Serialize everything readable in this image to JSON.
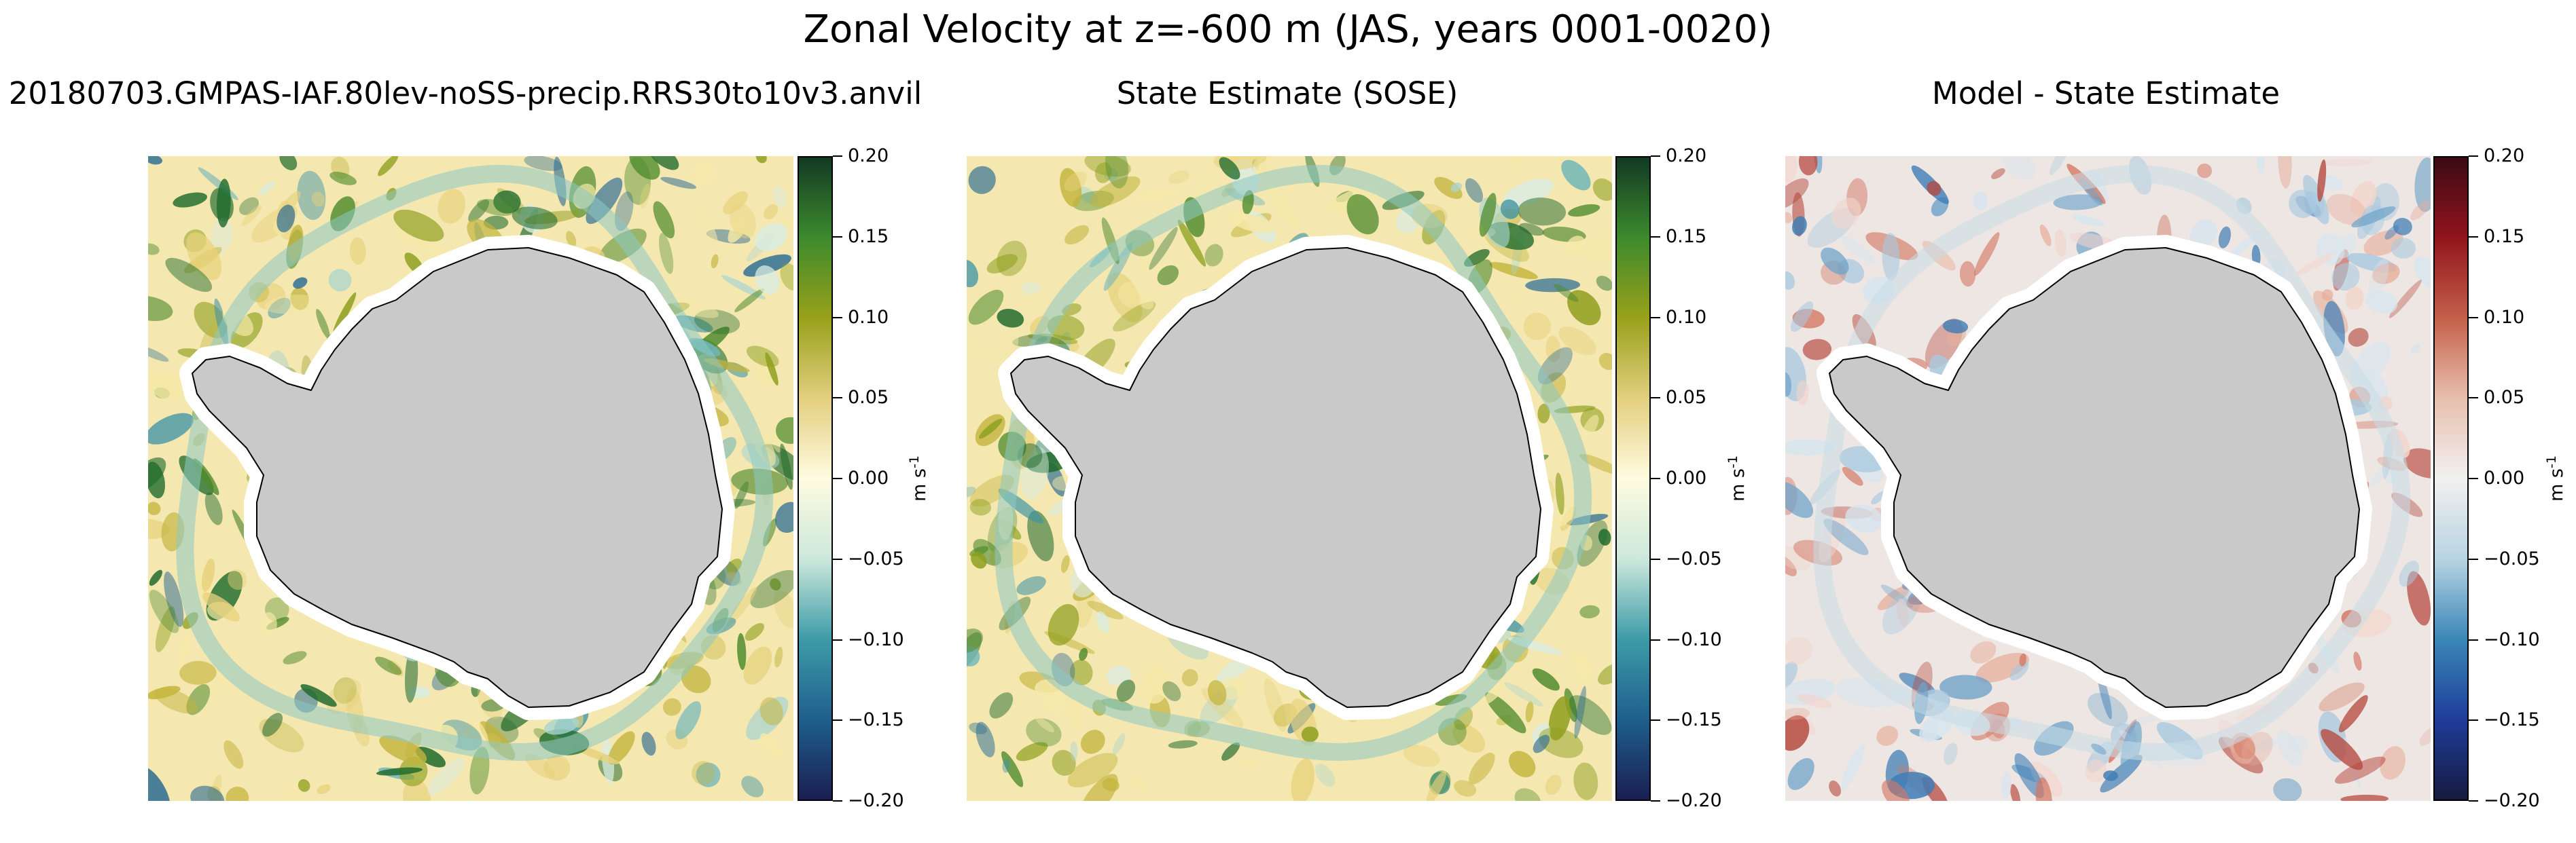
{
  "title": "Zonal Velocity at z=-600 m (JAS, years 0001-0020)",
  "chart_data": [
    {
      "type": "heatmap",
      "title": "20180703.GMPAS-IAF.80lev-noSS-precip.RRS30to10v3.anvil",
      "projection": "south-polar stereographic",
      "land_color": "#c9c9c9",
      "colormap": "ocean-speed diverging (navy-teal-cream-olive-dark green)",
      "colorbar": {
        "label": "m s",
        "label_exponent": "-1",
        "range": [
          -0.2,
          0.2
        ],
        "ticks": [
          -0.2,
          -0.15,
          -0.1,
          -0.05,
          0.0,
          0.05,
          0.1,
          0.15,
          0.2
        ],
        "tick_labels": [
          "−0.20",
          "−0.15",
          "−0.10",
          "−0.05",
          "0.00",
          "0.05",
          "0.10",
          "0.15",
          "0.20"
        ],
        "stops": [
          "#1a1e52",
          "#1f5f8c",
          "#3d9ba8",
          "#cde8dc",
          "#fefbe0",
          "#e3cf7f",
          "#98a11b",
          "#3c8a2c",
          "#123a24"
        ]
      }
    },
    {
      "type": "heatmap",
      "title": "State Estimate (SOSE)",
      "projection": "south-polar stereographic",
      "land_color": "#c9c9c9",
      "colormap": "ocean-speed diverging (navy-teal-cream-olive-dark green)",
      "colorbar": {
        "label": "m s",
        "label_exponent": "-1",
        "range": [
          -0.2,
          0.2
        ],
        "ticks": [
          -0.2,
          -0.15,
          -0.1,
          -0.05,
          0.0,
          0.05,
          0.1,
          0.15,
          0.2
        ],
        "tick_labels": [
          "−0.20",
          "−0.15",
          "−0.10",
          "−0.05",
          "0.00",
          "0.05",
          "0.10",
          "0.15",
          "0.20"
        ],
        "stops": [
          "#1a1e52",
          "#1f5f8c",
          "#3d9ba8",
          "#cde8dc",
          "#fefbe0",
          "#e3cf7f",
          "#98a11b",
          "#3c8a2c",
          "#123a24"
        ]
      }
    },
    {
      "type": "heatmap",
      "title": "Model - State Estimate",
      "projection": "south-polar stereographic",
      "land_color": "#c9c9c9",
      "colormap": "balance (blue-white-red)",
      "colorbar": {
        "label": "m s",
        "label_exponent": "-1",
        "range": [
          -0.2,
          0.2
        ],
        "ticks": [
          -0.2,
          -0.15,
          -0.1,
          -0.05,
          0.0,
          0.05,
          0.1,
          0.15,
          0.2
        ],
        "tick_labels": [
          "−0.20",
          "−0.15",
          "−0.10",
          "−0.05",
          "0.00",
          "0.05",
          "0.10",
          "0.15",
          "0.20"
        ],
        "stops": [
          "#161a40",
          "#1f3d9a",
          "#3a87b7",
          "#b9d4e3",
          "#f2f0ef",
          "#e8bfae",
          "#c4604a",
          "#92141c",
          "#3b0a14"
        ]
      }
    }
  ]
}
